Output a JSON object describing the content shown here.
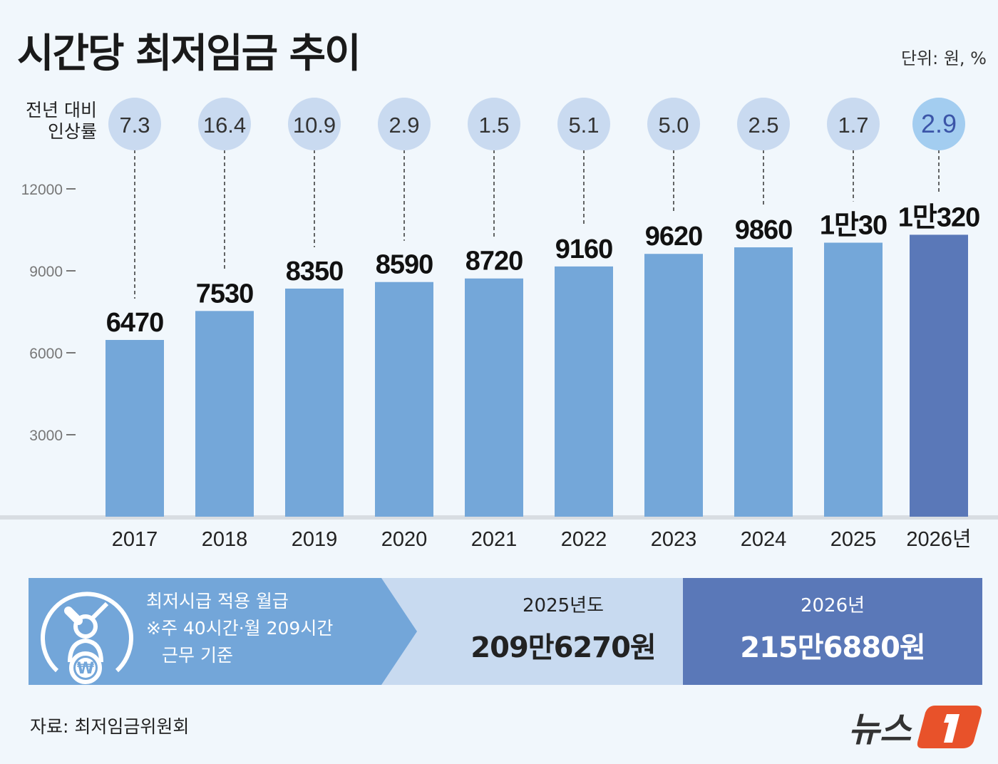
{
  "title": "시간당 최저임금 추이",
  "unit": "단위: 원, %",
  "rate_label": [
    "전년 대비",
    "인상률"
  ],
  "chart_data": {
    "type": "bar",
    "title": "시간당 최저임금 추이",
    "categories": [
      "2017",
      "2018",
      "2019",
      "2020",
      "2021",
      "2022",
      "2023",
      "2024",
      "2025",
      "2026년"
    ],
    "values": [
      6470,
      7530,
      8350,
      8590,
      8720,
      9160,
      9620,
      9860,
      10030,
      10320
    ],
    "value_labels": [
      "6470",
      "7530",
      "8350",
      "8590",
      "8720",
      "9160",
      "9620",
      "9860",
      "1만30",
      "1만320"
    ],
    "growth_rates": [
      "7.3",
      "16.4",
      "10.9",
      "2.9",
      "1.5",
      "5.1",
      "5.0",
      "2.5",
      "1.7",
      "2.9"
    ],
    "yticks": [
      3000,
      6000,
      9000,
      12000
    ],
    "ytick_labels": [
      "3000",
      "6000",
      "9000",
      "12000"
    ],
    "ylim": [
      0,
      12000
    ],
    "xlabel": "",
    "ylabel": "",
    "highlight_index": 9,
    "colors": {
      "bar": "#74a7d9",
      "highlight": "#5a78b8",
      "circle": "#c9daf0",
      "circle_highlight": "#a3cdf0"
    }
  },
  "banner": {
    "heading": "최저시급 적용 월급",
    "note1": "※주 40시간·월 209시간",
    "note2": "근무 기준",
    "y2025_label": "2025년도",
    "y2025_amount": "209만6270원",
    "y2026_label": "2026년",
    "y2026_amount": "215만6880원"
  },
  "source": "자료: 최저임금위원회",
  "logo": "뉴스1"
}
